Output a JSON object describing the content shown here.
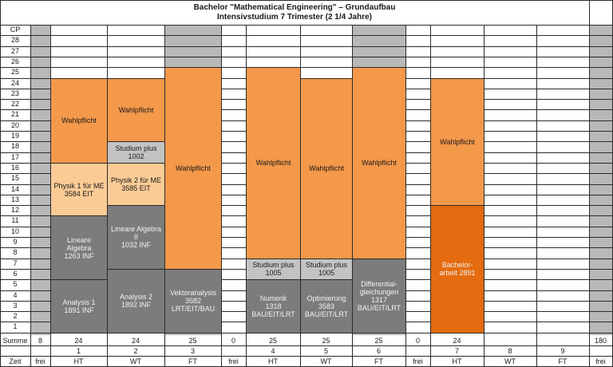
{
  "title": {
    "line1": "Bachelor \"Mathematical Engineering\" – Grundaufbau",
    "line2": "Intensivstudium 7 Trimester (2 1/4 Jahre)"
  },
  "cp_header": "CP",
  "cp_labels": [
    "28",
    "27",
    "26",
    "25",
    "24",
    "23",
    "22",
    "21",
    "20",
    "19",
    "18",
    "17",
    "16",
    "15",
    "14",
    "13",
    "12",
    "11",
    "10",
    "9",
    "8",
    "7",
    "6",
    "5",
    "4",
    "3",
    "2",
    "1"
  ],
  "colors": {
    "wahlpflicht": "#f4984a",
    "physik": "#fbcb96",
    "pflicht_dark": "#7c7c7c",
    "studium_plus": "#c3c3c3",
    "bachelorarbeit": "#e46b0f",
    "gap": "#b8b8b8"
  },
  "blocks": [
    {
      "id": "analysis1",
      "label": "Analysis  1\n1891 INF",
      "kind": "pflicht_dark"
    },
    {
      "id": "lineare1",
      "label": "Lineare\nAlgebra\n1263 INF",
      "kind": "pflicht_dark"
    },
    {
      "id": "physik1",
      "label": "Physik 1 für ME\n3584 EIT",
      "kind": "physik"
    },
    {
      "id": "wahl1",
      "label": "Wahlpflicht",
      "kind": "wahlpflicht"
    },
    {
      "id": "analysis2",
      "label": "Analysis 2\n1892 INF",
      "kind": "pflicht_dark"
    },
    {
      "id": "lineare2",
      "label": "Lineare Algebra\nII\n1032 INF",
      "kind": "pflicht_dark"
    },
    {
      "id": "physik2",
      "label": "Physik 2 für ME\n3585 EIT",
      "kind": "physik"
    },
    {
      "id": "studplus2",
      "label": "Studium plus\n1002",
      "kind": "studium_plus"
    },
    {
      "id": "wahl2",
      "label": "Wahlpflicht",
      "kind": "wahlpflicht"
    },
    {
      "id": "vektor",
      "label": "Vektoranalysis\n3582\nLRT/EIT/BAU",
      "kind": "pflicht_dark"
    },
    {
      "id": "wahl3",
      "label": "Wahlpflicht",
      "kind": "wahlpflicht"
    },
    {
      "id": "numerik",
      "label": "Numerik\n1318\nBAU/EIT/LRT",
      "kind": "pflicht_dark"
    },
    {
      "id": "studplus4",
      "label": "Studium plus\n1005",
      "kind": "studium_plus"
    },
    {
      "id": "wahl4",
      "label": "Wahlpflicht",
      "kind": "wahlpflicht"
    },
    {
      "id": "optimierung",
      "label": "Optimierung\n3583\nBAU/EIT/LRT",
      "kind": "pflicht_dark"
    },
    {
      "id": "studplus5",
      "label": "Studium plus\n1005",
      "kind": "studium_plus"
    },
    {
      "id": "wahl5",
      "label": "Wahlpflicht",
      "kind": "wahlpflicht"
    },
    {
      "id": "diffgl",
      "label": "Differential-\ngleichungen\n1317\nBAU/EIT/LRT",
      "kind": "pflicht_dark"
    },
    {
      "id": "wahl6",
      "label": "Wahlpflicht",
      "kind": "wahlpflicht"
    },
    {
      "id": "bachelor",
      "label": "Bachelor-\narbeit 2891",
      "kind": "bachelorarbeit"
    },
    {
      "id": "wahl7",
      "label": "Wahlpflicht",
      "kind": "wahlpflicht"
    }
  ],
  "summe_label": "Summe",
  "zeit_label": "Zeit",
  "summe": [
    "8",
    "24",
    "24",
    "25",
    "0",
    "25",
    "25",
    "25",
    "0",
    "24",
    "",
    "",
    "180"
  ],
  "trimester": [
    "",
    "1",
    "2",
    "3",
    "",
    "4",
    "5",
    "6",
    "",
    "7",
    "8",
    "9",
    ""
  ],
  "zeit": [
    "frei",
    "HT",
    "WT",
    "FT",
    "frei",
    "HT",
    "WT",
    "FT",
    "frei",
    "HT",
    "WT",
    "FT",
    "frei"
  ]
}
